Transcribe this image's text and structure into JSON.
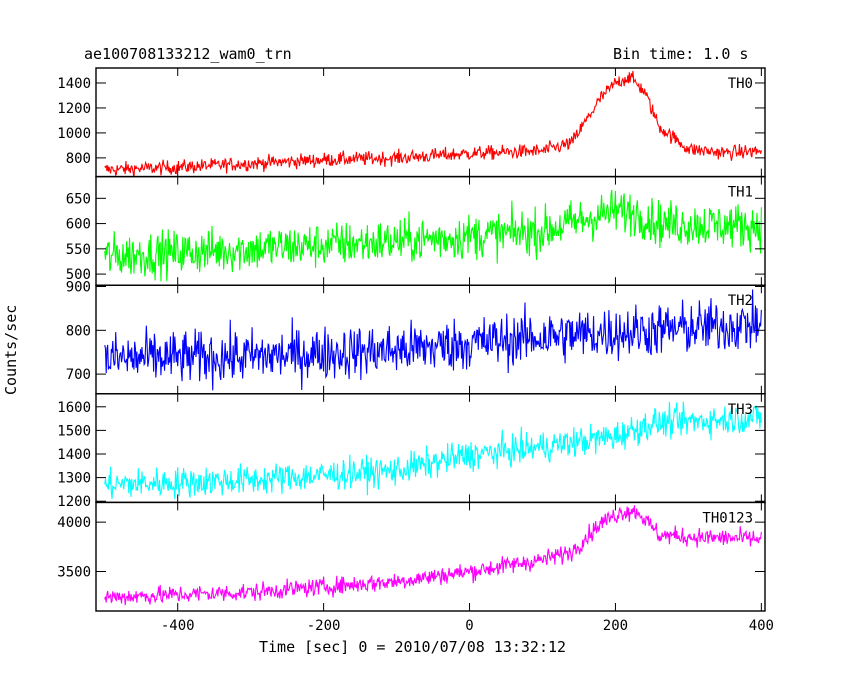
{
  "page": {
    "title_left": "ae100708133212_wam0_trn",
    "title_right": "Bin time: 1.0 s"
  },
  "chart_data": {
    "type": "line",
    "xlabel": "Time [sec] 0 = 2010/07/08 13:32:12",
    "ylabel": "Counts/sec",
    "xlim": [
      -512,
      405
    ],
    "x_ticks": [
      -400,
      -200,
      0,
      200,
      400
    ],
    "x_range": [
      -500,
      400
    ],
    "bin_time_s": 1.0,
    "panels": [
      {
        "name": "TH0",
        "color": "#ff0000",
        "ylim": [
          650,
          1520
        ],
        "y_ticks": [
          800,
          1000,
          1200,
          1400
        ],
        "trend": [
          [
            -500,
            705
          ],
          [
            -400,
            725
          ],
          [
            -300,
            755
          ],
          [
            -200,
            785
          ],
          [
            -100,
            800
          ],
          [
            0,
            835
          ],
          [
            100,
            855
          ],
          [
            140,
            920
          ],
          [
            180,
            1280
          ],
          [
            200,
            1400
          ],
          [
            220,
            1450
          ],
          [
            240,
            1330
          ],
          [
            260,
            1050
          ],
          [
            300,
            870
          ],
          [
            350,
            840
          ],
          [
            400,
            855
          ]
        ],
        "noise": 28
      },
      {
        "name": "TH1",
        "color": "#00ff00",
        "ylim": [
          478,
          693
        ],
        "y_ticks": [
          500,
          550,
          600,
          650
        ],
        "trend": [
          [
            -500,
            535
          ],
          [
            -300,
            550
          ],
          [
            -100,
            565
          ],
          [
            100,
            585
          ],
          [
            150,
            605
          ],
          [
            200,
            625
          ],
          [
            230,
            620
          ],
          [
            260,
            600
          ],
          [
            400,
            595
          ]
        ],
        "noise": 22
      },
      {
        "name": "TH2",
        "color": "#0000ff",
        "ylim": [
          655,
          903
        ],
        "y_ticks": [
          700,
          800,
          900
        ],
        "trend": [
          [
            -500,
            735
          ],
          [
            -300,
            740
          ],
          [
            -100,
            755
          ],
          [
            100,
            785
          ],
          [
            300,
            805
          ],
          [
            400,
            815
          ]
        ],
        "noise": 30
      },
      {
        "name": "TH3",
        "color": "#00ffff",
        "ylim": [
          1195,
          1655
        ],
        "y_ticks": [
          1200,
          1300,
          1400,
          1500,
          1600
        ],
        "trend": [
          [
            -500,
            1270
          ],
          [
            -300,
            1290
          ],
          [
            -100,
            1330
          ],
          [
            0,
            1395
          ],
          [
            100,
            1430
          ],
          [
            200,
            1475
          ],
          [
            250,
            1530
          ],
          [
            400,
            1555
          ]
        ],
        "noise": 32
      },
      {
        "name": "TH0123",
        "color": "#ff00ff",
        "ylim": [
          3100,
          4200
        ],
        "y_ticks": [
          3500,
          4000
        ],
        "trend": [
          [
            -500,
            3240
          ],
          [
            -300,
            3290
          ],
          [
            -100,
            3400
          ],
          [
            0,
            3500
          ],
          [
            100,
            3620
          ],
          [
            140,
            3700
          ],
          [
            180,
            3990
          ],
          [
            210,
            4110
          ],
          [
            230,
            4110
          ],
          [
            260,
            3870
          ],
          [
            300,
            3850
          ],
          [
            400,
            3830
          ]
        ],
        "noise": 45
      }
    ]
  }
}
